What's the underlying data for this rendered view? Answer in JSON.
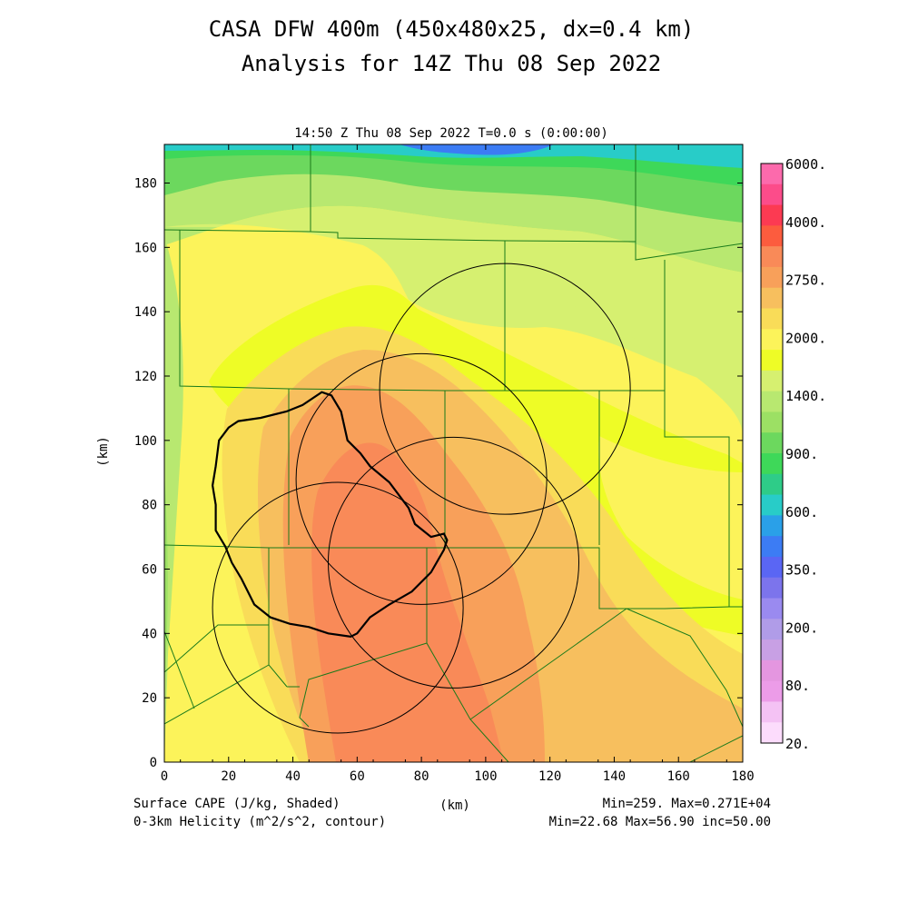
{
  "header": {
    "title_line1": "CASA DFW 400m (450x480x25, dx=0.4 km)",
    "title_line2": "Analysis for 14Z Thu 08 Sep 2022",
    "valid_time": "14:50 Z Thu 08 Sep 2022   T=0.0 s (0:00:00)"
  },
  "axes": {
    "x_label": "(km)",
    "y_label": "(km)",
    "x_ticks": [
      "0",
      "20",
      "40",
      "60",
      "80",
      "100",
      "120",
      "140",
      "160",
      "180"
    ],
    "y_ticks": [
      "0",
      "20",
      "40",
      "60",
      "80",
      "100",
      "120",
      "140",
      "160",
      "180"
    ],
    "xlim": [
      0,
      180
    ],
    "ylim": [
      0,
      192
    ]
  },
  "colorbar": {
    "labels": [
      "6000.",
      "4000.",
      "2750.",
      "2000.",
      "1400.",
      "900.",
      "600.",
      "350.",
      "200.",
      "80.",
      "20."
    ],
    "colors": [
      "#fc6aac",
      "#fc4c8a",
      "#fc3a52",
      "#fc5c3e",
      "#f98a58",
      "#f8a05a",
      "#f7bf5e",
      "#f9dc58",
      "#fcf35a",
      "#eefc26",
      "#d6f070",
      "#b8e870",
      "#9ce064",
      "#6cd85e",
      "#3ed859",
      "#2ecc88",
      "#28ccc8",
      "#2aa0e8",
      "#3c7cf4",
      "#5a66f4",
      "#7c74ec",
      "#9a8af0",
      "#b09ce8",
      "#c8a0e4",
      "#e496e0",
      "#ec9ce8",
      "#f4c2f4",
      "#fcdcfc"
    ]
  },
  "footer": {
    "left_line1": "Surface CAPE (J/kg, Shaded)",
    "left_line2": "0-3km Helicity (m^2/s^2, contour)",
    "center": "(km)",
    "right_line1": "Min=259. Max=0.271E+04",
    "right_line2": "Min=22.68 Max=56.90 inc=50.00"
  },
  "radar_rings": [
    {
      "cx": 106,
      "cy": 116,
      "r": 39
    },
    {
      "cx": 80,
      "cy": 88,
      "r": 39
    },
    {
      "cx": 90,
      "cy": 62,
      "r": 39
    },
    {
      "cx": 54,
      "cy": 48,
      "r": 39
    }
  ],
  "helicity_contour": [
    [
      17,
      100
    ],
    [
      20,
      104
    ],
    [
      23,
      106
    ],
    [
      30,
      107
    ],
    [
      38,
      109
    ],
    [
      43,
      111
    ],
    [
      49,
      115
    ],
    [
      52,
      114
    ],
    [
      55,
      109
    ],
    [
      57,
      100
    ],
    [
      61,
      96
    ],
    [
      64,
      92
    ],
    [
      70,
      87
    ],
    [
      76,
      79
    ],
    [
      78,
      74
    ],
    [
      83,
      70
    ],
    [
      87,
      71
    ],
    [
      88,
      69
    ],
    [
      87,
      66
    ],
    [
      83,
      59
    ],
    [
      77,
      53
    ],
    [
      70,
      49
    ],
    [
      64,
      45
    ],
    [
      60,
      40
    ],
    [
      58,
      39
    ],
    [
      51,
      40
    ],
    [
      45,
      42
    ],
    [
      39,
      43
    ],
    [
      33,
      45
    ],
    [
      28,
      49
    ],
    [
      24,
      57
    ],
    [
      21,
      62
    ],
    [
      19,
      67
    ],
    [
      16,
      72
    ],
    [
      16,
      80
    ],
    [
      15,
      86
    ],
    [
      16,
      92
    ],
    [
      17,
      100
    ]
  ]
}
